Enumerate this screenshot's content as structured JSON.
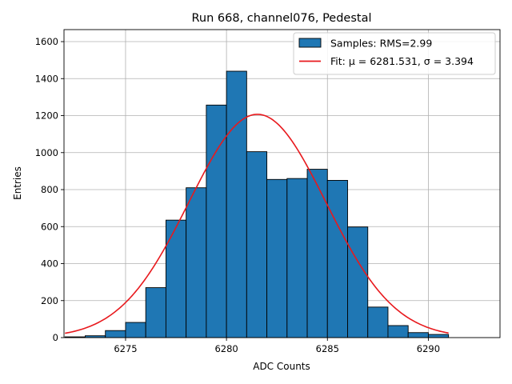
{
  "chart_data": {
    "type": "bar",
    "title": "Run 668, channel076, Pedestal",
    "xlabel": "ADC Counts",
    "ylabel": "Entries",
    "xlim": [
      6271.95,
      6293.55
    ],
    "ylim": [
      0,
      1665
    ],
    "grid": true,
    "legend_position": "top-right",
    "x_ticks": [
      6275,
      6280,
      6285,
      6290
    ],
    "y_ticks": [
      0,
      200,
      400,
      600,
      800,
      1000,
      1200,
      1400,
      1600
    ],
    "histogram": {
      "name": "Samples: RMS=2.99",
      "color": "#1f77b4",
      "edge_color": "#000000",
      "bin_edges": [
        6272,
        6273,
        6274,
        6275,
        6276,
        6277,
        6278,
        6279,
        6280,
        6281,
        6282,
        6283,
        6284,
        6285,
        6286,
        6287,
        6288,
        6289,
        6290,
        6291
      ],
      "counts": [
        4,
        10,
        38,
        82,
        270,
        635,
        810,
        1257,
        1440,
        1005,
        855,
        860,
        910,
        850,
        598,
        165,
        65,
        27,
        17
      ]
    },
    "fit": {
      "name": "Fit: μ = 6281.531, σ = 3.394",
      "color": "#e8191d",
      "mu": 6281.531,
      "sigma": 3.394,
      "amplitude": 1207,
      "x_range": [
        6272,
        6291
      ]
    }
  }
}
